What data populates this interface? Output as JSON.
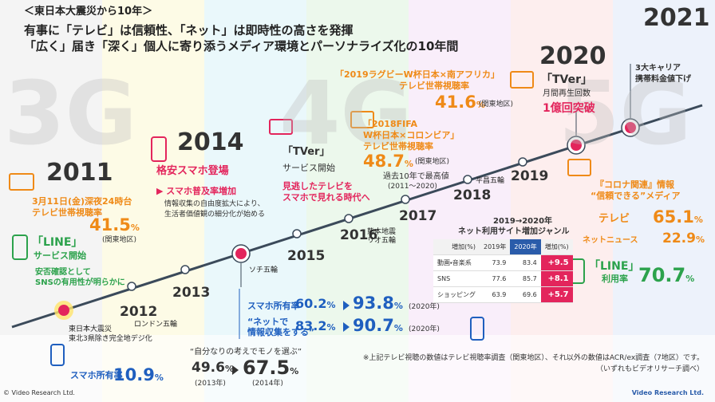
{
  "header": {
    "kicker": "＜東日本大震災から10年＞",
    "title": [
      "有事に「テレビ」は信頼性、「ネット」は即時性の高さを発揮",
      "「広く」届き「深く」個人に寄り添うメディア環境とパーソナライズ化の10年間"
    ]
  },
  "generations": [
    "3G",
    "4G",
    "5G"
  ],
  "years": [
    "2011",
    "2012",
    "2013",
    "2014",
    "2015",
    "2016",
    "2017",
    "2018",
    "2019",
    "2020",
    "2021"
  ],
  "events": {
    "y2011": [
      "東日本大震災",
      "東北3県除き完全地デジ化"
    ],
    "y2012": "ロンドン五輪",
    "y2014": "ソチ五輪",
    "y2016": [
      "熊本地震",
      "リオ五輪"
    ],
    "y2018": "平昌五輪"
  },
  "quake_tv": {
    "lines": [
      "3月11日(金)深夜24時台",
      "テレビ世帯視聴率"
    ],
    "value": "41.5",
    "unit": "%",
    "note": "(関東地区)"
  },
  "line_2011": {
    "title": "「LINE」",
    "lines": [
      "サービス開始",
      "安否確認として",
      "SNSの有用性が明らかに"
    ]
  },
  "smartphone_2011": {
    "label": "スマホ所有率",
    "value": "10.9",
    "unit": "%"
  },
  "cheap_phone": {
    "title": "格安スマホ登場",
    "subtitle": "▶ スマホ普及率増加",
    "lines": [
      "情報収集の自由度拡大により、",
      "生活者価値観の細分化が始める"
    ]
  },
  "tver_2015": {
    "title": "「TVer」",
    "lines": [
      "サービス開始"
    ],
    "highlight": [
      "見逃したテレビを",
      "スマホで見れる時代へ"
    ]
  },
  "stats": {
    "rows": [
      {
        "label": [
          "スマホ所有率"
        ],
        "from": "60.2",
        "to": "93.8",
        "unit": "%",
        "note": "(2020年)"
      },
      {
        "label": [
          "“ネットで",
          "情報収集をする”"
        ],
        "from": "83.2",
        "to": "90.7",
        "unit": "%",
        "note": "(2020年)"
      }
    ]
  },
  "own_choice": {
    "title": "“自分なりの考えでモノを選ぶ”",
    "from": "49.6",
    "from_note": "(2013年)",
    "to": "67.5",
    "to_note": "(2014年)",
    "unit": "%"
  },
  "fifa": {
    "lines": [
      "「2018FIFA",
      "W杯日本×コロンビア」",
      "テレビ世帯視聴率"
    ],
    "value": "48.7",
    "unit": "%",
    "note": "(関東地区)",
    "sub": [
      "過去10年で最高値",
      "(2011～2020)"
    ]
  },
  "rugby": {
    "lines": [
      "「2019ラグビーW杯日本×南アフリカ」",
      "テレビ世帯視聴率"
    ],
    "value": "41.6",
    "unit": "%",
    "note": "(関東地区)"
  },
  "tver_2020": {
    "title": "「TVer」",
    "lines": [
      "月間再生回数"
    ],
    "highlight": "1億回突破"
  },
  "carrier": {
    "lines": [
      "3大キャリア",
      "携帯料金値下げ"
    ]
  },
  "corona": {
    "title": [
      "『コロナ関連』情報",
      "“信頼できる”メディア"
    ],
    "items": [
      {
        "label": "テレビ",
        "value": "65.1",
        "unit": "%"
      },
      {
        "label": "ネットニュース",
        "value": "22.9",
        "unit": "%"
      }
    ]
  },
  "line_2020": {
    "title": "「LINE」",
    "label": "利用率",
    "value": "70.7",
    "unit": "%"
  },
  "table": {
    "title": [
      "2019→2020年",
      "ネット利用サイト増加ジャンル"
    ],
    "header": [
      "増加(%)",
      "2019年",
      "2020年",
      "増加(%)"
    ],
    "rows": [
      [
        "動画・音楽系",
        "73.9",
        "83.4",
        "+9.5"
      ],
      [
        "SNS",
        "77.6",
        "85.7",
        "+8.1"
      ],
      [
        "ショッピング",
        "63.9",
        "69.6",
        "+5.7"
      ]
    ]
  },
  "footnote": [
    "※上記テレビ視聴の数値はテレビ視聴率調査（関東地区）、それ以外の数値はACR/ex調査（7地区）です。",
    "（いずれもビデオリサーチ調べ）"
  ],
  "copyright": "© Video Research Ltd.",
  "logo": "Video Research Ltd."
}
